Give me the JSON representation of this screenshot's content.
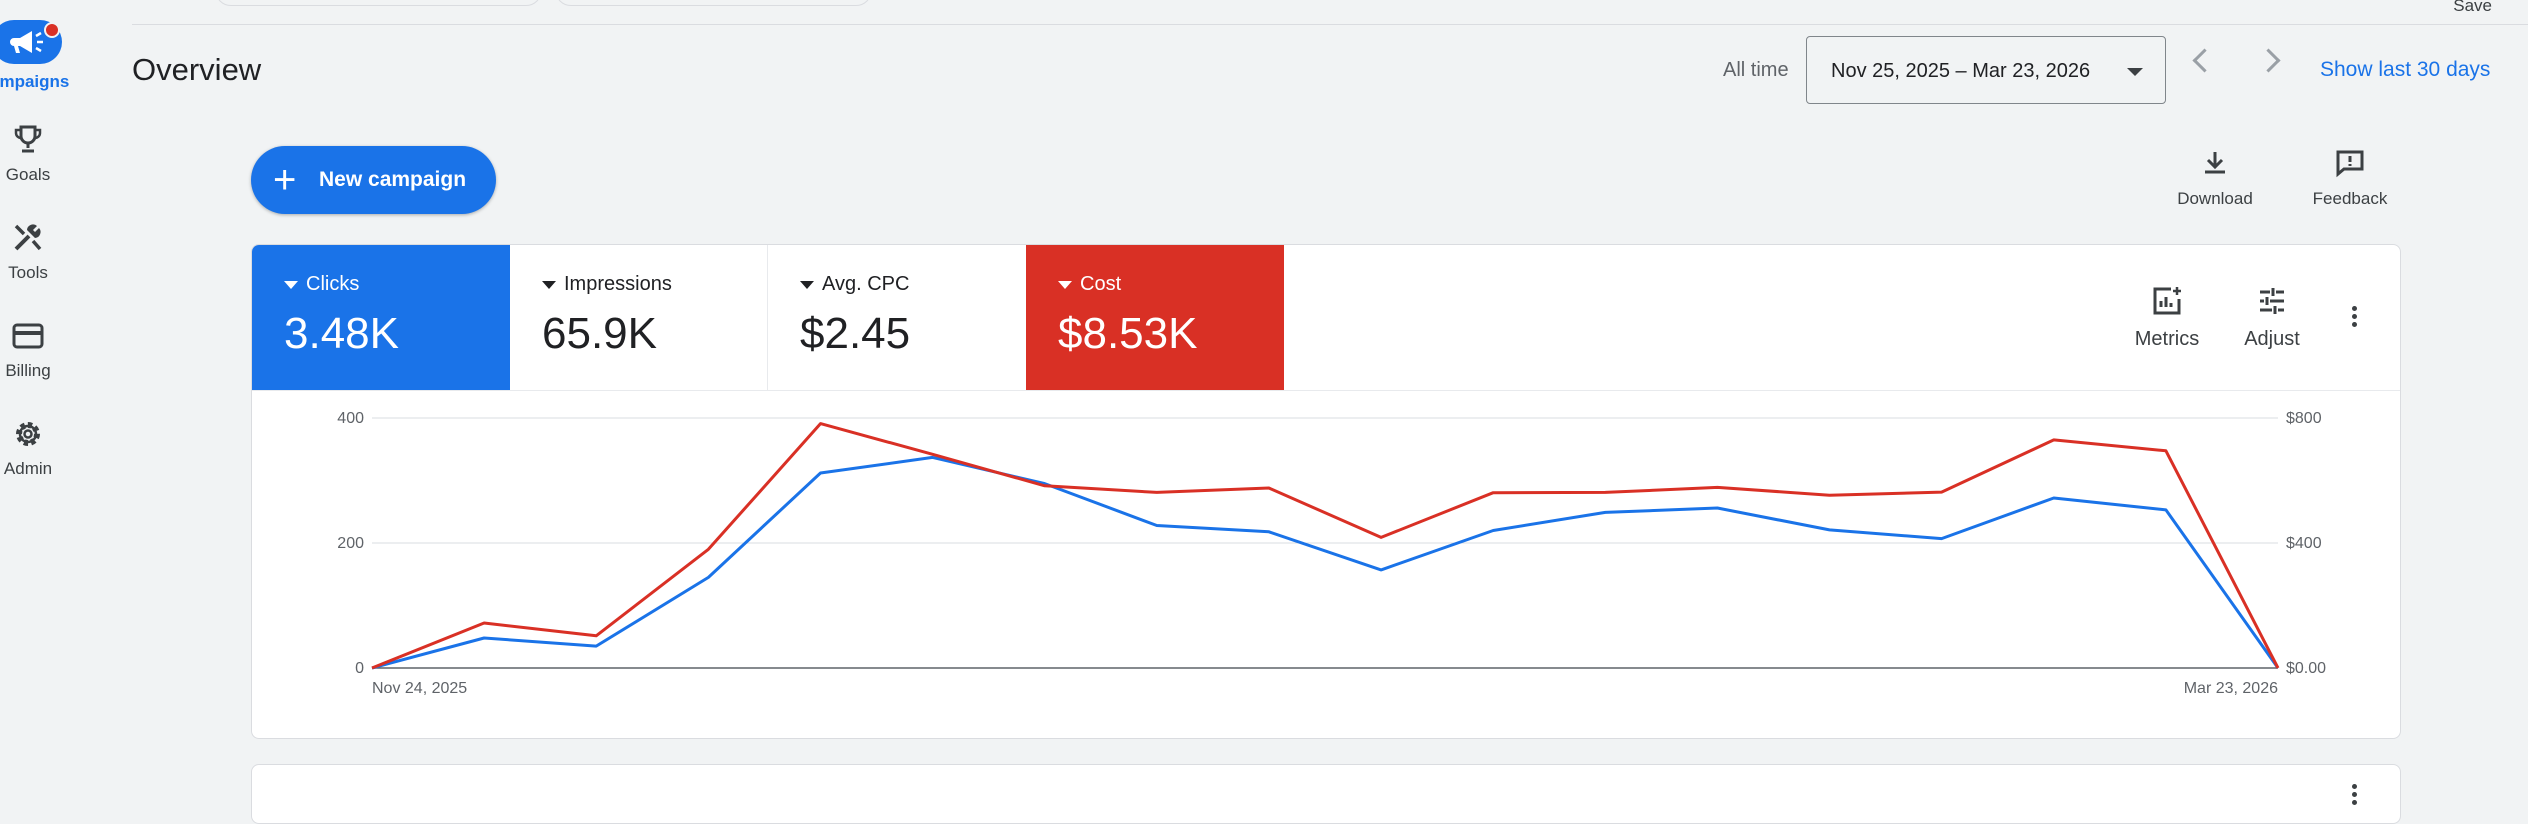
{
  "nav": {
    "items": [
      {
        "label": "Campaigns",
        "visible_label": "ampaigns",
        "icon": "megaphone-icon",
        "active": true
      },
      {
        "label": "Goals",
        "icon": "trophy-icon"
      },
      {
        "label": "Tools",
        "icon": "tools-icon"
      },
      {
        "label": "Billing",
        "icon": "credit-card-icon"
      },
      {
        "label": "Admin",
        "icon": "gear-icon"
      }
    ]
  },
  "topbar": {
    "save_label": "Save"
  },
  "overview": {
    "title": "Overview",
    "all_time_label": "All time",
    "date_range": "Nov 25, 2025 – Mar 23, 2026",
    "show_last_label": "Show last 30 days"
  },
  "actions": {
    "new_campaign_label": "New campaign",
    "download_label": "Download",
    "feedback_label": "Feedback"
  },
  "metrics": {
    "tiles": [
      {
        "name": "Clicks",
        "value": "3.48K",
        "bg": "#1a73e8",
        "fg": "#ffffff"
      },
      {
        "name": "Impressions",
        "value": "65.9K",
        "bg": "#ffffff",
        "fg": "#202124"
      },
      {
        "name": "Avg. CPC",
        "value": "$2.45",
        "bg": "#ffffff",
        "fg": "#202124"
      },
      {
        "name": "Cost",
        "value": "$8.53K",
        "bg": "#d93025",
        "fg": "#ffffff"
      }
    ],
    "metrics_label": "Metrics",
    "adjust_label": "Adjust"
  },
  "chart_data": {
    "type": "line",
    "x_start_label": "Nov 24, 2025",
    "x_end_label": "Mar 23, 2026",
    "y_left": {
      "ticks": [
        "0",
        "200",
        "400"
      ],
      "values": [
        0,
        200,
        400
      ],
      "range": [
        0,
        400
      ]
    },
    "y_right": {
      "ticks": [
        "$0.00",
        "$400",
        "$800"
      ],
      "values": [
        0,
        400,
        800
      ],
      "range": [
        0,
        800
      ]
    },
    "series": [
      {
        "axis": "left",
        "color": "#1a73e8",
        "values": [
          0,
          48,
          35,
          145,
          312,
          337,
          295,
          228,
          218,
          157,
          220,
          249,
          256,
          221,
          207,
          272,
          253,
          0
        ]
      },
      {
        "axis": "right",
        "color": "#d93025",
        "values": [
          0,
          144,
          103,
          380,
          782,
          684,
          583,
          562,
          576,
          418,
          561,
          562,
          578,
          553,
          563,
          730,
          695,
          0
        ]
      }
    ]
  }
}
